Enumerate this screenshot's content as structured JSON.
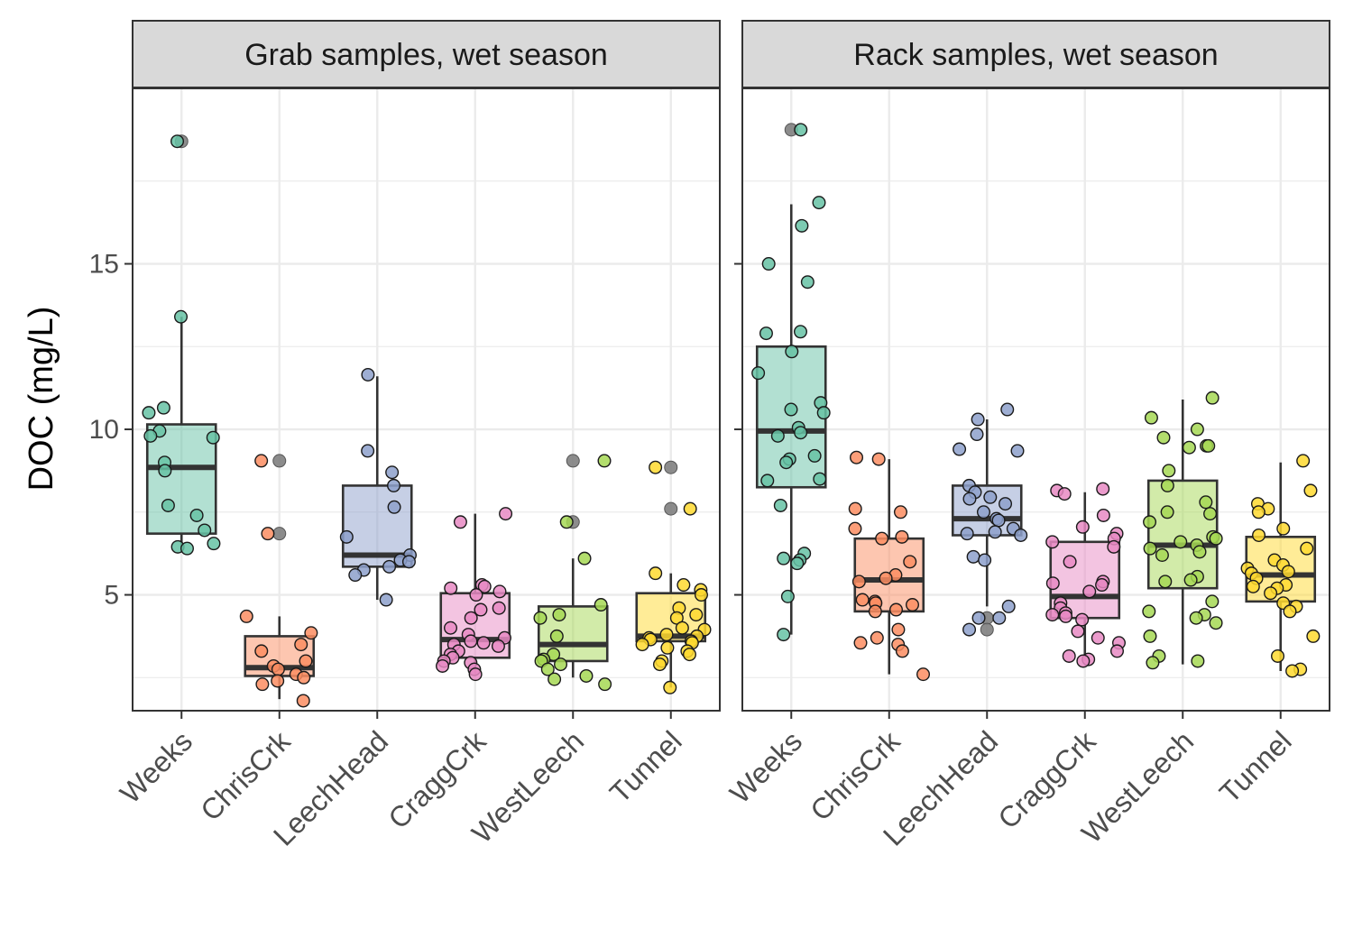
{
  "chart_data": {
    "type": "box",
    "ylabel": "DOC (mg/L)",
    "ylim": [
      1.5,
      20.3
    ],
    "yticks": [
      5,
      10,
      15
    ],
    "categories": [
      "Weeks",
      "ChrisCrk",
      "LeechHead",
      "CraggCrk",
      "WestLeech",
      "Tunnel"
    ],
    "colors": [
      "#66c2a5",
      "#fc8d62",
      "#8da0cb",
      "#e78ac3",
      "#a6d854",
      "#ffd92f"
    ],
    "outlier_color": "#7f7f7f",
    "grid": true,
    "panels": [
      {
        "title": "Grab samples, wet season",
        "boxes": [
          {
            "category": "Weeks",
            "q1": 6.85,
            "median": 8.85,
            "q3": 10.15,
            "whisker_low": 6.4,
            "whisker_high": 13.4,
            "outliers": [
              18.7
            ],
            "points": [
              18.7,
              13.4,
              10.65,
              10.5,
              9.95,
              9.8,
              9.75,
              9.0,
              8.75,
              7.7,
              7.4,
              6.95,
              6.55,
              6.45,
              6.4
            ]
          },
          {
            "category": "ChrisCrk",
            "q1": 2.55,
            "median": 2.8,
            "q3": 3.75,
            "whisker_low": 1.85,
            "whisker_high": 4.35,
            "outliers": [
              9.05,
              6.85
            ],
            "points": [
              9.05,
              6.85,
              4.35,
              3.85,
              3.5,
              3.3,
              3.0,
              2.85,
              2.75,
              2.6,
              2.5,
              2.4,
              2.3,
              1.8
            ]
          },
          {
            "category": "LeechHead",
            "q1": 5.85,
            "median": 6.2,
            "q3": 8.3,
            "whisker_low": 4.85,
            "whisker_high": 11.6,
            "outliers": [],
            "points": [
              11.65,
              9.35,
              8.7,
              8.3,
              7.65,
              6.75,
              6.2,
              6.05,
              6.0,
              5.85,
              5.75,
              5.6,
              4.85
            ]
          },
          {
            "category": "CraggCrk",
            "q1": 3.1,
            "median": 3.65,
            "q3": 5.05,
            "whisker_low": 2.55,
            "whisker_high": 7.45,
            "outliers": [],
            "points": [
              7.45,
              7.2,
              5.3,
              5.25,
              5.2,
              5.1,
              5.0,
              4.6,
              4.55,
              4.3,
              4.0,
              3.8,
              3.7,
              3.6,
              3.55,
              3.5,
              3.45,
              3.3,
              3.2,
              3.1,
              3.0,
              2.95,
              2.85,
              2.75,
              2.6
            ]
          },
          {
            "category": "WestLeech",
            "q1": 3.0,
            "median": 3.5,
            "q3": 4.65,
            "whisker_low": 2.5,
            "whisker_high": 6.1,
            "outliers": [
              9.05,
              7.2
            ],
            "points": [
              9.05,
              7.2,
              6.1,
              4.7,
              4.4,
              4.3,
              3.75,
              3.2,
              3.05,
              3.0,
              2.9,
              2.75,
              2.55,
              2.45,
              2.3
            ]
          },
          {
            "category": "Tunnel",
            "q1": 3.6,
            "median": 3.75,
            "q3": 5.05,
            "whisker_low": 2.2,
            "whisker_high": 5.65,
            "outliers": [
              8.85,
              7.6
            ],
            "points": [
              8.85,
              7.6,
              5.65,
              5.3,
              5.15,
              5.0,
              4.6,
              4.4,
              4.3,
              4.0,
              3.95,
              3.8,
              3.75,
              3.7,
              3.65,
              3.6,
              3.55,
              3.5,
              3.4,
              3.3,
              3.2,
              3.0,
              2.9,
              2.2
            ]
          }
        ]
      },
      {
        "title": "Rack samples, wet season",
        "boxes": [
          {
            "category": "Weeks",
            "q1": 8.25,
            "median": 9.95,
            "q3": 12.5,
            "whisker_low": 3.8,
            "whisker_high": 16.8,
            "outliers": [
              19.05
            ],
            "points": [
              19.05,
              16.85,
              16.15,
              15.0,
              14.45,
              12.95,
              12.9,
              12.35,
              11.7,
              10.8,
              10.6,
              10.5,
              10.05,
              9.9,
              9.8,
              9.2,
              9.1,
              9.0,
              8.5,
              8.45,
              7.7,
              6.25,
              6.1,
              6.05,
              5.95,
              4.95,
              3.8
            ]
          },
          {
            "category": "ChrisCrk",
            "q1": 4.5,
            "median": 5.45,
            "q3": 6.7,
            "whisker_low": 2.6,
            "whisker_high": 9.1,
            "outliers": [],
            "points": [
              9.15,
              9.1,
              7.6,
              7.5,
              7.0,
              6.75,
              6.7,
              6.0,
              5.6,
              5.5,
              5.4,
              4.85,
              4.8,
              4.75,
              4.7,
              4.55,
              4.5,
              3.95,
              3.7,
              3.55,
              3.5,
              3.3,
              2.6
            ]
          },
          {
            "category": "LeechHead",
            "q1": 6.8,
            "median": 7.3,
            "q3": 8.3,
            "whisker_low": 4.65,
            "whisker_high": 10.3,
            "outliers": [
              4.3,
              3.95
            ],
            "points": [
              10.6,
              10.3,
              9.85,
              9.4,
              9.35,
              8.3,
              8.1,
              7.95,
              7.9,
              7.75,
              7.5,
              7.3,
              7.25,
              7.0,
              6.9,
              6.85,
              6.8,
              6.15,
              6.05,
              4.65,
              4.3,
              4.3,
              3.95
            ]
          },
          {
            "category": "CraggCrk",
            "q1": 4.3,
            "median": 4.95,
            "q3": 6.6,
            "whisker_low": 3.0,
            "whisker_high": 8.1,
            "outliers": [],
            "points": [
              8.2,
              8.15,
              8.05,
              7.4,
              7.05,
              6.85,
              6.7,
              6.6,
              6.45,
              6.0,
              5.4,
              5.35,
              5.3,
              5.1,
              4.75,
              4.6,
              4.45,
              4.4,
              4.35,
              4.25,
              3.9,
              3.7,
              3.55,
              3.3,
              3.15,
              3.05,
              3.0
            ]
          },
          {
            "category": "WestLeech",
            "q1": 5.2,
            "median": 6.5,
            "q3": 8.45,
            "whisker_low": 2.9,
            "whisker_high": 10.9,
            "outliers": [],
            "points": [
              10.95,
              10.35,
              10.0,
              9.75,
              9.5,
              9.5,
              9.45,
              8.75,
              8.3,
              7.8,
              7.5,
              7.45,
              7.2,
              6.75,
              6.7,
              6.6,
              6.5,
              6.4,
              6.3,
              6.2,
              5.55,
              5.45,
              5.4,
              4.8,
              4.5,
              4.4,
              4.3,
              4.15,
              3.75,
              3.15,
              3.0,
              2.95
            ]
          },
          {
            "category": "Tunnel",
            "q1": 4.8,
            "median": 5.6,
            "q3": 6.75,
            "whisker_low": 2.7,
            "whisker_high": 9.0,
            "outliers": [],
            "points": [
              9.05,
              8.15,
              7.75,
              7.6,
              7.5,
              7.0,
              6.8,
              6.4,
              6.05,
              5.9,
              5.8,
              5.7,
              5.65,
              5.5,
              5.3,
              5.25,
              5.2,
              5.05,
              4.75,
              4.65,
              4.5,
              3.75,
              3.15,
              2.75,
              2.7
            ]
          }
        ]
      }
    ]
  }
}
